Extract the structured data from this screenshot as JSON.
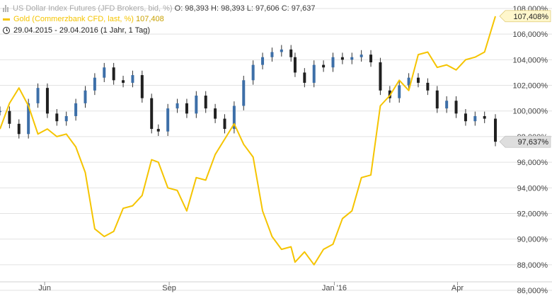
{
  "legend": {
    "series1_name": "US Dollar Index Futures (JFD Brokers, bid, %)",
    "series1_o": "O: 98,393",
    "series1_h": "H: 98,393",
    "series1_l": "L: 97,606",
    "series1_c": "C: 97,637",
    "series2_name": "Gold (Commerzbank CFD, last, %)",
    "series2_last": "107,408",
    "period": "29.04.2015 - 29.04.2016 (1 Jahr, 1 Tag)"
  },
  "price_tags": {
    "gold": "107,408%",
    "usd": "97,637%"
  },
  "colors": {
    "gold": "#f5c400",
    "usd_up": "#3d6fa8",
    "usd_down": "#202020",
    "grid": "#e2e2e2",
    "gold_tag": "#fff7cc",
    "usd_tag": "#dedede"
  },
  "chart_data": {
    "type": "line",
    "x_range": [
      "2015-04-29",
      "2016-04-29"
    ],
    "x_ticks": [
      {
        "date": "2015-06-01",
        "label": "Jun"
      },
      {
        "date": "2015-09-01",
        "label": "Sep"
      },
      {
        "date": "2016-01-01",
        "label": "Jan '16"
      },
      {
        "date": "2016-04-01",
        "label": "Apr"
      }
    ],
    "ylim": [
      86,
      108
    ],
    "y_ticks": [
      {
        "value": 108,
        "label": "108,000%"
      },
      {
        "value": 106,
        "label": "106,000%"
      },
      {
        "value": 104,
        "label": "104,000%"
      },
      {
        "value": 102,
        "label": "102,000%"
      },
      {
        "value": 100,
        "label": "100,000%"
      },
      {
        "value": 98,
        "label": "98,000%"
      },
      {
        "value": 96,
        "label": "96,000%"
      },
      {
        "value": 94,
        "label": "94,000%"
      },
      {
        "value": 92,
        "label": "92,000%"
      },
      {
        "value": 90,
        "label": "90,000%"
      },
      {
        "value": 88,
        "label": "88,000%"
      },
      {
        "value": 86,
        "label": "86,000%"
      }
    ],
    "grid": "horizontal",
    "series": [
      {
        "name": "US Dollar Index Futures (JFD Brokers, bid, %)",
        "style": "candlestick",
        "x": [
          "2015-04-29",
          "2015-05-06",
          "2015-05-13",
          "2015-05-20",
          "2015-05-27",
          "2015-06-03",
          "2015-06-10",
          "2015-06-17",
          "2015-06-24",
          "2015-07-01",
          "2015-07-08",
          "2015-07-15",
          "2015-07-22",
          "2015-07-29",
          "2015-08-05",
          "2015-08-12",
          "2015-08-19",
          "2015-08-24",
          "2015-08-31",
          "2015-09-07",
          "2015-09-14",
          "2015-09-21",
          "2015-09-28",
          "2015-10-05",
          "2015-10-12",
          "2015-10-19",
          "2015-10-26",
          "2015-11-02",
          "2015-11-09",
          "2015-11-16",
          "2015-11-23",
          "2015-11-30",
          "2015-12-03",
          "2015-12-10",
          "2015-12-17",
          "2015-12-24",
          "2015-12-31",
          "2016-01-07",
          "2016-01-14",
          "2016-01-21",
          "2016-01-28",
          "2016-02-04",
          "2016-02-11",
          "2016-02-18",
          "2016-02-25",
          "2016-03-03",
          "2016-03-10",
          "2016-03-17",
          "2016-03-24",
          "2016-03-31",
          "2016-04-07",
          "2016-04-14",
          "2016-04-21",
          "2016-04-29"
        ],
        "y": [
          100.0,
          99.0,
          98.2,
          100.6,
          101.8,
          99.8,
          99.2,
          99.6,
          100.6,
          101.6,
          102.6,
          103.4,
          102.4,
          102.2,
          102.8,
          101.0,
          98.6,
          98.4,
          100.2,
          100.6,
          99.8,
          101.2,
          100.2,
          99.4,
          98.6,
          100.4,
          102.4,
          103.6,
          104.2,
          104.6,
          104.8,
          104.2,
          103.0,
          102.2,
          103.6,
          103.4,
          104.2,
          104.0,
          104.2,
          104.4,
          103.8,
          101.6,
          101.0,
          102.0,
          102.6,
          102.2,
          101.6,
          100.2,
          100.8,
          99.8,
          99.2,
          99.6,
          99.4,
          97.6
        ]
      },
      {
        "name": "Gold (Commerzbank CFD, last, %)",
        "style": "line",
        "x": [
          "2015-04-29",
          "2015-05-06",
          "2015-05-13",
          "2015-05-20",
          "2015-05-27",
          "2015-06-03",
          "2015-06-10",
          "2015-06-17",
          "2015-06-24",
          "2015-07-01",
          "2015-07-08",
          "2015-07-15",
          "2015-07-22",
          "2015-07-29",
          "2015-08-05",
          "2015-08-12",
          "2015-08-19",
          "2015-08-24",
          "2015-08-31",
          "2015-09-07",
          "2015-09-14",
          "2015-09-21",
          "2015-09-28",
          "2015-10-05",
          "2015-10-12",
          "2015-10-19",
          "2015-10-26",
          "2015-11-02",
          "2015-11-09",
          "2015-11-16",
          "2015-11-23",
          "2015-11-30",
          "2015-12-03",
          "2015-12-10",
          "2015-12-17",
          "2015-12-24",
          "2015-12-31",
          "2016-01-07",
          "2016-01-14",
          "2016-01-21",
          "2016-01-28",
          "2016-02-04",
          "2016-02-11",
          "2016-02-18",
          "2016-02-25",
          "2016-03-03",
          "2016-03-10",
          "2016-03-17",
          "2016-03-24",
          "2016-03-31",
          "2016-04-07",
          "2016-04-14",
          "2016-04-21",
          "2016-04-29"
        ],
        "y": [
          98.6,
          100.6,
          101.8,
          100.4,
          98.2,
          98.6,
          98.0,
          98.2,
          97.2,
          95.2,
          90.8,
          90.2,
          90.6,
          92.4,
          92.6,
          93.4,
          96.2,
          96.0,
          94.0,
          93.8,
          92.2,
          94.8,
          94.6,
          96.6,
          97.8,
          99.0,
          97.4,
          96.4,
          92.2,
          90.2,
          89.2,
          89.4,
          88.2,
          89.0,
          88.0,
          89.2,
          89.6,
          91.6,
          92.2,
          94.8,
          95.0,
          100.4,
          101.2,
          102.4,
          101.6,
          104.4,
          104.6,
          103.4,
          103.6,
          103.2,
          104.0,
          104.2,
          104.6,
          107.4
        ]
      }
    ]
  }
}
